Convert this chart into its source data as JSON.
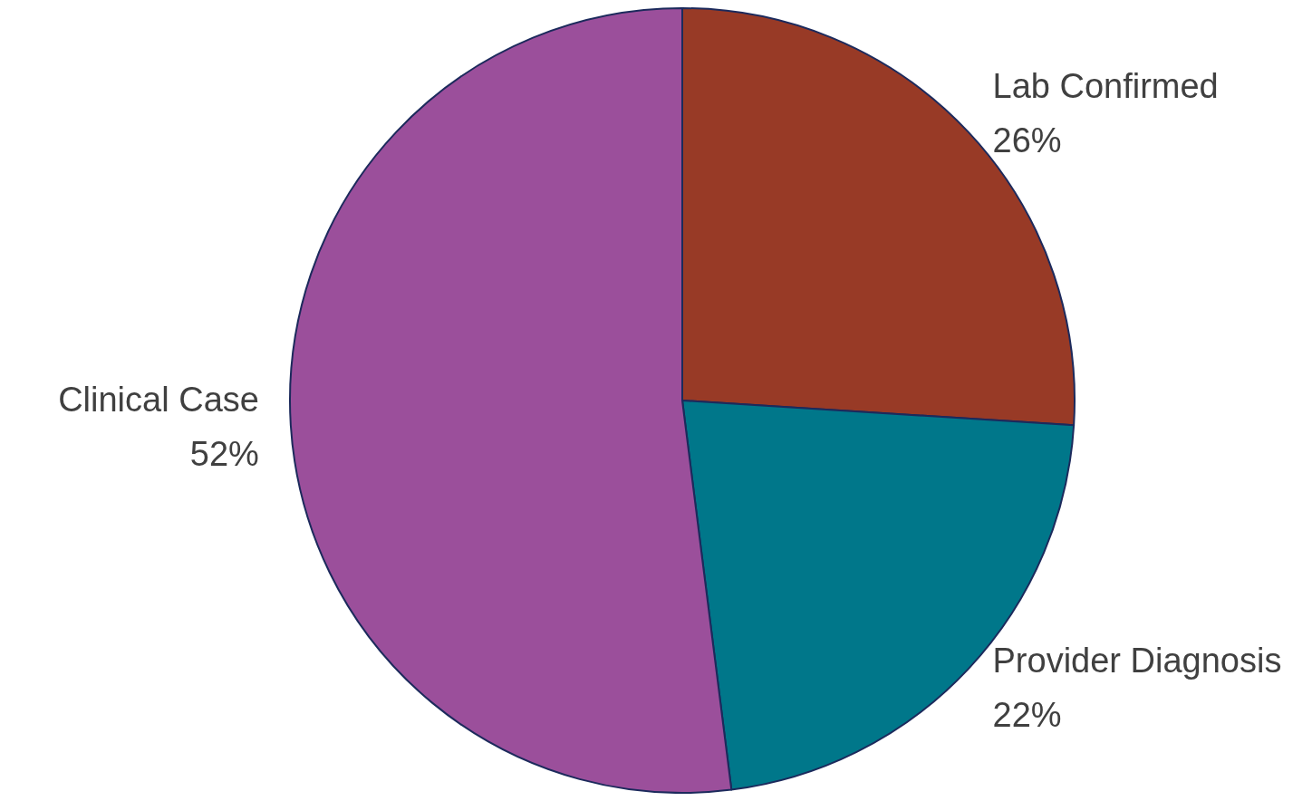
{
  "chart_data": {
    "type": "pie",
    "categories": [
      "Lab Confirmed",
      "Provider Diagnosis",
      "Clinical Case"
    ],
    "values": [
      26,
      22,
      52
    ],
    "value_labels": [
      "26%",
      "22%",
      "52%"
    ],
    "colors": [
      "#983a26",
      "#00778a",
      "#9b4f9b"
    ],
    "legend": false
  }
}
